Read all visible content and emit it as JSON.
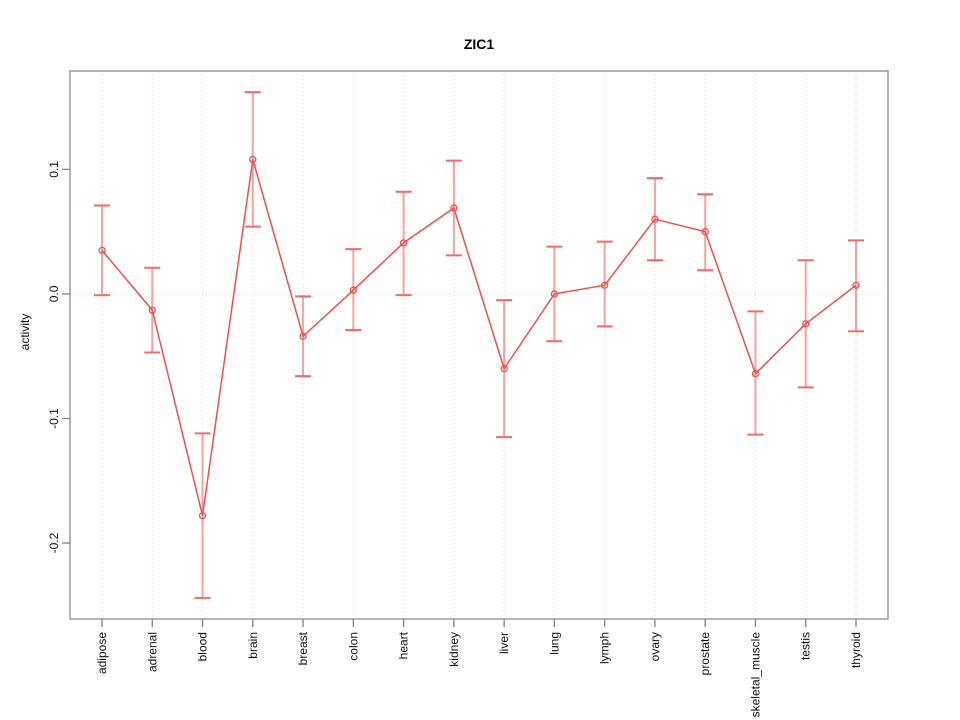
{
  "chart_data": {
    "type": "line",
    "title": "ZIC1",
    "ylabel": "activity",
    "xlabel": "",
    "legend": null,
    "grid": "vertical-dotted",
    "zero_line": true,
    "categories": [
      "adipose",
      "adrenal",
      "blood",
      "brain",
      "breast",
      "colon",
      "heart",
      "kidney",
      "liver",
      "lung",
      "lymph",
      "ovary",
      "prostate",
      "skeletal_muscle",
      "testis",
      "thyroid"
    ],
    "values": [
      0.035,
      -0.013,
      -0.178,
      0.108,
      -0.034,
      0.003,
      0.041,
      0.069,
      -0.06,
      0.0,
      0.007,
      0.06,
      0.05,
      -0.064,
      -0.024,
      0.007
    ],
    "error_low": [
      -0.001,
      -0.047,
      -0.244,
      0.054,
      -0.066,
      -0.029,
      -0.001,
      0.031,
      -0.115,
      -0.038,
      -0.026,
      0.027,
      0.019,
      -0.113,
      -0.075,
      -0.03
    ],
    "error_high": [
      0.071,
      0.021,
      -0.112,
      0.162,
      -0.002,
      0.036,
      0.082,
      0.107,
      -0.005,
      0.038,
      0.042,
      0.093,
      0.08,
      -0.014,
      0.027,
      0.043
    ],
    "ylim": [
      -0.261,
      0.179
    ],
    "yticks": [
      -0.2,
      -0.1,
      0.0,
      0.1
    ],
    "ytick_labels": [
      "-0.2",
      "-0.1",
      "0.0",
      "0.1"
    ],
    "colors": {
      "series": "#f04f4f",
      "error_bar": "#f6a2a2",
      "error_cap": "#ef6b6b",
      "grid": "#d7d7d7",
      "zero": "#dedede",
      "box": "#9b9b9b",
      "tick": "#828282",
      "text": "#111111"
    }
  }
}
